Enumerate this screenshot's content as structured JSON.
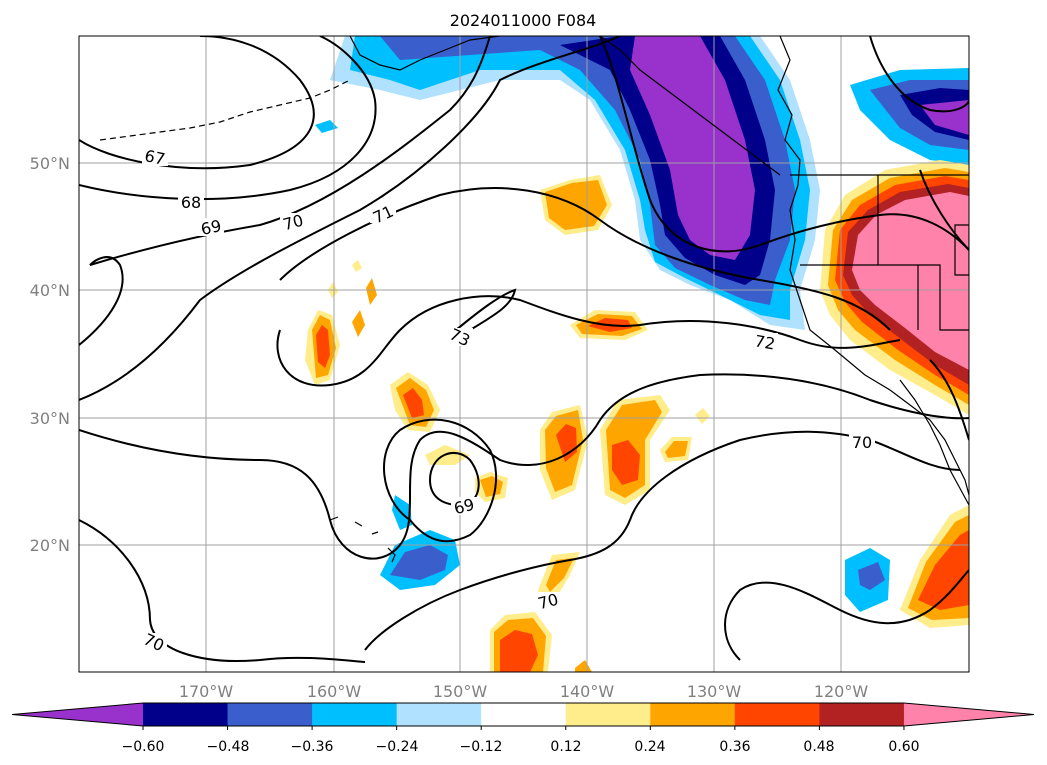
{
  "title": "2024011000 F084",
  "lon_labels": [
    "170°W",
    "160°W",
    "150°W",
    "140°W",
    "130°W",
    "120°W"
  ],
  "lat_labels": [
    "50°N",
    "40°N",
    "30°N",
    "20°N"
  ],
  "contour_labels": [
    "67",
    "68",
    "69",
    "70",
    "71",
    "72",
    "73",
    "70",
    "69",
    "70",
    "70"
  ],
  "colorbar": {
    "tick_labels": [
      "−0.60",
      "−0.48",
      "−0.36",
      "−0.24",
      "−0.12",
      "0.12",
      "0.24",
      "0.36",
      "0.48",
      "0.60"
    ],
    "colors": [
      "#9932cc",
      "#00008b",
      "#3a5fcd",
      "#00bfff",
      "#b0e2ff",
      "#ffffff",
      "#ffec8b",
      "#ffa500",
      "#ff4500",
      "#b22222",
      "#ff82ab"
    ]
  },
  "palette": {
    "grid": "#a0a0a0",
    "contour": "#000000",
    "coast": "#000000"
  }
}
